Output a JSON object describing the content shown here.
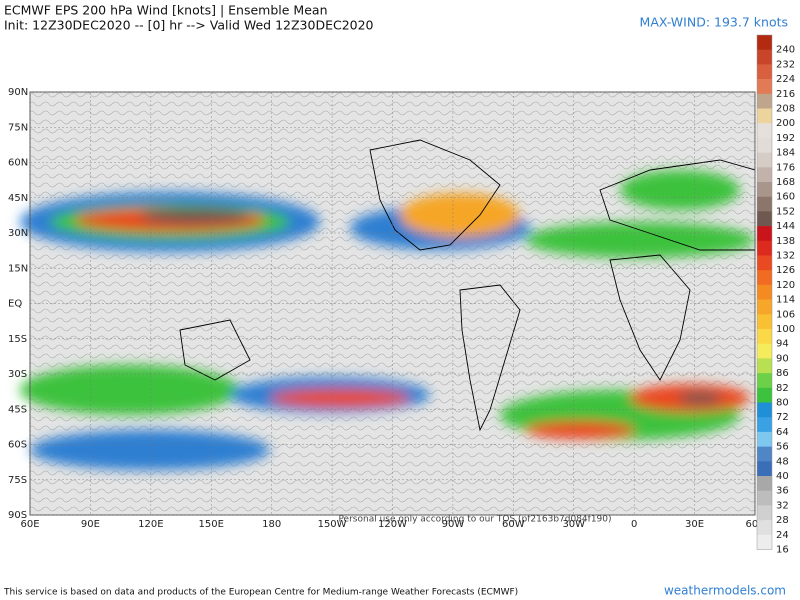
{
  "header": {
    "title": "ECMWF EPS 200 hPa Wind [knots] | Ensemble Mean",
    "subtitle": "Init: 12Z30DEC2020 -- [0] hr --> Valid Wed 12Z30DEC2020",
    "max_wind": "MAX-WIND: 193.7 knots"
  },
  "map": {
    "lat_labels": [
      "90N",
      "75N",
      "60N",
      "45N",
      "30N",
      "15N",
      "EQ",
      "15S",
      "30S",
      "45S",
      "60S",
      "75S",
      "90S"
    ],
    "lon_labels": [
      "60E",
      "90E",
      "120E",
      "150E",
      "180",
      "150W",
      "120W",
      "90W",
      "60W",
      "30W",
      "0",
      "30E",
      "60E"
    ],
    "watermark": "Personal use only according to our TOS (pf2163b7d084f190)"
  },
  "colorbar": {
    "levels": [
      240,
      232,
      224,
      216,
      208,
      200,
      192,
      184,
      176,
      168,
      160,
      152,
      144,
      138,
      132,
      126,
      120,
      114,
      106,
      100,
      94,
      90,
      86,
      82,
      80,
      72,
      64,
      56,
      48,
      40,
      36,
      32,
      28,
      24,
      16
    ],
    "colors": [
      "#b22a10",
      "#c9452a",
      "#d9603f",
      "#e27a55",
      "#bfa58c",
      "#ecd49c",
      "#e6e0dc",
      "#e2dcd8",
      "#d6ccc6",
      "#c2b3aa",
      "#a8968c",
      "#8c766b",
      "#6e5850",
      "#c8141a",
      "#dc2a1e",
      "#ea4a22",
      "#f26b22",
      "#f48a22",
      "#f6a628",
      "#f8c032",
      "#fad846",
      "#f4ec5c",
      "#b8e050",
      "#6cd048",
      "#3cc23c",
      "#1f8fd8",
      "#3aa2e4",
      "#7ec8f0",
      "#4f86c6",
      "#3a6fb8",
      "#a8a8a8",
      "#bdbdbd",
      "#d0d0d0",
      "#e0e0e0",
      "#ededed"
    ]
  },
  "footer": {
    "credit": "This service is based on data and products of the European Centre for Medium-range Weather Forecasts (ECMWF)",
    "site": "weathermodels.com"
  }
}
